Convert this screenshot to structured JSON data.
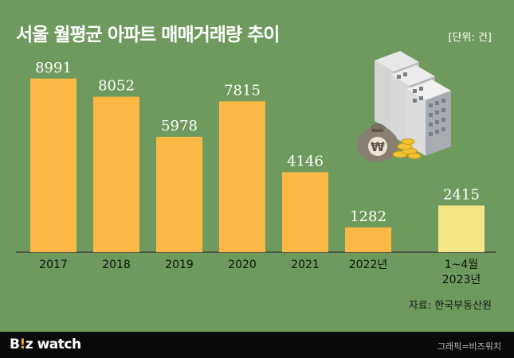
{
  "header": {
    "title": "서울 월평균 아파트 매매거래량 추이",
    "unit": "[단위: 건]"
  },
  "source": "자료: 한국부동산원",
  "footer": {
    "logo_b": "B",
    "logo_excl": "!",
    "logo_z": "z",
    "logo_watch": "watch",
    "credit": "그래픽=비즈워치"
  },
  "colors": {
    "background": "#6f9a5e",
    "bar": "#fbb845",
    "bar_highlight": "#f5e687",
    "footer": "#0a0a0a"
  },
  "illustration": {
    "icons": [
      "apartment-building-icon",
      "money-bag-icon",
      "gold-coins-icon"
    ],
    "bag_symbol": "₩"
  },
  "chart_data": {
    "type": "bar",
    "categories": [
      "2017",
      "2018",
      "2019",
      "2020",
      "2021",
      "2022년",
      "1~4월\n2023년"
    ],
    "values": [
      8991,
      8052,
      5978,
      7815,
      4146,
      1282,
      2415
    ],
    "value_labels": [
      "8991",
      "8052",
      "5978",
      "7815",
      "4146",
      "1282",
      "2415"
    ],
    "highlight_index": 6,
    "ylim": [
      0,
      9600
    ],
    "grid": false,
    "legend": "none"
  }
}
